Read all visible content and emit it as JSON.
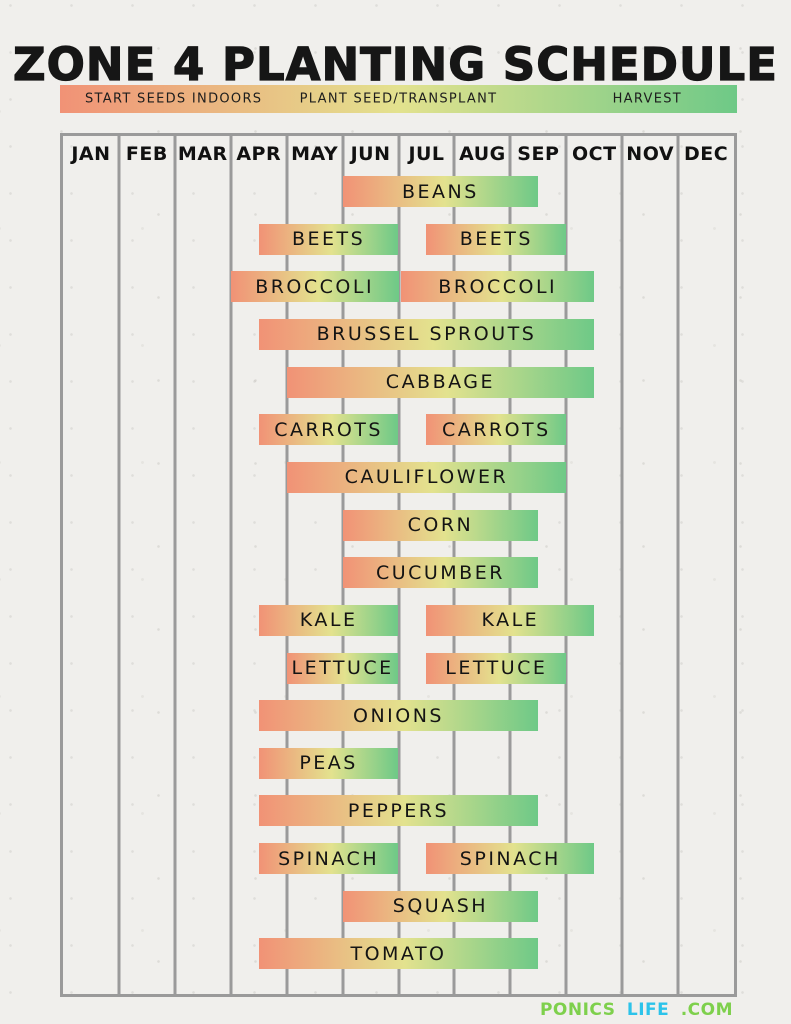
{
  "title": "ZONE 4 PLANTING SCHEDULE",
  "legend": {
    "items": [
      "START SEEDS INDOORS",
      "PLANT SEED/TRANSPLANT",
      "HARVEST"
    ]
  },
  "months": [
    "JAN",
    "FEB",
    "MAR",
    "APR",
    "MAY",
    "JUN",
    "JUL",
    "AUG",
    "SEP",
    "OCT",
    "NOV",
    "DEC"
  ],
  "colors": {
    "bar_gradient_start": "#f19276",
    "bar_gradient_mid": "#e3e28e",
    "bar_gradient_end": "#6ec987",
    "grid_line": "#9a9a9a",
    "background": "#f0efec",
    "text": "#161616",
    "brand_green": "#7ed04c",
    "brand_blue": "#2cc3ea"
  },
  "chart_data": {
    "type": "bar",
    "variant": "gantt_schedule",
    "title": "ZONE 4 PLANTING SCHEDULE",
    "x_unit": "month",
    "x_labels": [
      "JAN",
      "FEB",
      "MAR",
      "APR",
      "MAY",
      "JUN",
      "JUL",
      "AUG",
      "SEP",
      "OCT",
      "NOV",
      "DEC"
    ],
    "x_range": [
      0,
      12
    ],
    "legend_stages": [
      "START SEEDS INDOORS",
      "PLANT SEED/TRANSPLANT",
      "HARVEST"
    ],
    "bar_color_meaning": "gradient within each bar: start seeds indoors (salmon) -> plant seed/transplant (yellow-green) -> harvest (green)",
    "bars": [
      {
        "row": 0,
        "label": "BEANS",
        "start": 5.0,
        "end": 8.5
      },
      {
        "row": 1,
        "label": "BEETS",
        "start": 3.5,
        "end": 6.0
      },
      {
        "row": 1,
        "label": "BEETS",
        "start": 6.5,
        "end": 9.0
      },
      {
        "row": 2,
        "label": "BROCCOLI",
        "start": 3.0,
        "end": 6.0
      },
      {
        "row": 2,
        "label": "BROCCOLI",
        "start": 6.05,
        "end": 9.5
      },
      {
        "row": 3,
        "label": "BRUSSEL SPROUTS",
        "start": 3.5,
        "end": 9.5
      },
      {
        "row": 4,
        "label": "CABBAGE",
        "start": 4.0,
        "end": 9.5
      },
      {
        "row": 5,
        "label": "CARROTS",
        "start": 3.5,
        "end": 6.0
      },
      {
        "row": 5,
        "label": "CARROTS",
        "start": 6.5,
        "end": 9.0
      },
      {
        "row": 6,
        "label": "CAULIFLOWER",
        "start": 4.0,
        "end": 9.0
      },
      {
        "row": 7,
        "label": "CORN",
        "start": 5.0,
        "end": 8.5
      },
      {
        "row": 8,
        "label": "CUCUMBER",
        "start": 5.0,
        "end": 8.5
      },
      {
        "row": 9,
        "label": "KALE",
        "start": 3.5,
        "end": 6.0
      },
      {
        "row": 9,
        "label": "KALE",
        "start": 6.5,
        "end": 9.5
      },
      {
        "row": 10,
        "label": "LETTUCE",
        "start": 4.0,
        "end": 6.0
      },
      {
        "row": 10,
        "label": "LETTUCE",
        "start": 6.5,
        "end": 9.0
      },
      {
        "row": 11,
        "label": "ONIONS",
        "start": 3.5,
        "end": 8.5
      },
      {
        "row": 12,
        "label": "PEAS",
        "start": 3.5,
        "end": 6.0
      },
      {
        "row": 13,
        "label": "PEPPERS",
        "start": 3.5,
        "end": 8.5
      },
      {
        "row": 14,
        "label": "SPINACH",
        "start": 3.5,
        "end": 6.0
      },
      {
        "row": 14,
        "label": "SPINACH",
        "start": 6.5,
        "end": 9.5
      },
      {
        "row": 15,
        "label": "SQUASH",
        "start": 5.0,
        "end": 8.5
      },
      {
        "row": 16,
        "label": "TOMATO",
        "start": 3.5,
        "end": 8.5
      }
    ]
  },
  "footer": {
    "parts": [
      {
        "text": "PONICS",
        "color": "#7ed04c"
      },
      {
        "text": "LIFE",
        "color": "#2cc3ea"
      },
      {
        "text": ".COM",
        "color": "#7ed04c"
      }
    ]
  }
}
